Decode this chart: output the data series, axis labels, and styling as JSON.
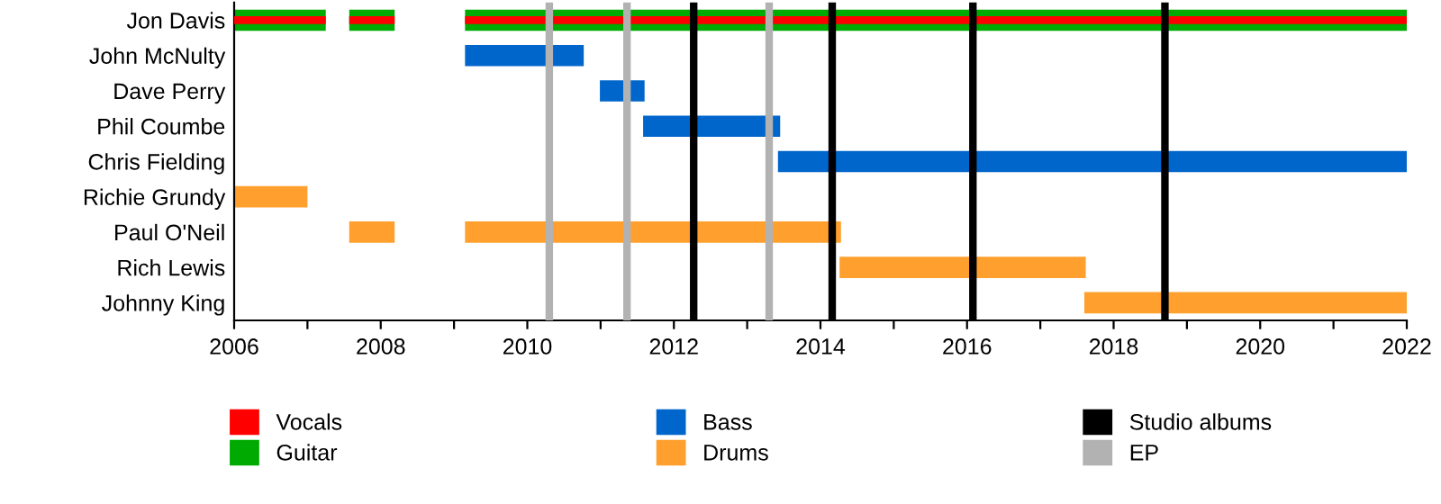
{
  "chart_data": {
    "type": "bar",
    "orientation": "horizontal",
    "categories": [
      "Jon Davis",
      "John McNulty",
      "Dave Perry",
      "Phil Coumbe",
      "Chris Fielding",
      "Richie Grundy",
      "Paul O'Neil",
      "Rich Lewis",
      "Johnny King"
    ],
    "series": [
      {
        "name": "Guitar",
        "color": "#00aa00",
        "base": [
          2006,
          null,
          null,
          null,
          null,
          null,
          null,
          null,
          null
        ],
        "values": [
          1.25,
          null,
          null,
          null,
          null,
          null,
          null,
          null,
          null
        ]
      },
      {
        "name": "Vocals",
        "color": "#ff0000",
        "base": [
          2006,
          null,
          null,
          null,
          null,
          null,
          null,
          null,
          null
        ],
        "values": [
          1.25,
          null,
          null,
          null,
          null,
          null,
          null,
          null,
          null
        ]
      },
      {
        "color": "#00aa00",
        "base": [
          2007.57,
          null,
          null,
          null,
          null,
          null,
          null,
          null,
          null
        ],
        "values": [
          0.62,
          null,
          null,
          null,
          null,
          null,
          null,
          null,
          null
        ]
      },
      {
        "color": "#ff0000",
        "base": [
          2007.57,
          null,
          null,
          null,
          null,
          null,
          null,
          null,
          null
        ],
        "values": [
          0.62,
          null,
          null,
          null,
          null,
          null,
          null,
          null,
          null
        ]
      },
      {
        "color": "#00aa00",
        "base": [
          2009.15,
          null,
          null,
          null,
          null,
          null,
          null,
          null,
          null
        ],
        "values": [
          12.85,
          null,
          null,
          null,
          null,
          null,
          null,
          null,
          null
        ]
      },
      {
        "color": "#ff0000",
        "base": [
          2009.15,
          null,
          null,
          null,
          null,
          null,
          null,
          null,
          null
        ],
        "values": [
          12.85,
          null,
          null,
          null,
          null,
          null,
          null,
          null,
          null
        ]
      },
      {
        "name": "Bass",
        "color": "#0066cc",
        "base": [
          null,
          2009.15,
          2010.99,
          2011.58,
          2013.42,
          null,
          null,
          null,
          null
        ],
        "values": [
          null,
          1.62,
          0.61,
          1.87,
          8.58,
          null,
          null,
          null,
          null
        ]
      },
      {
        "name": "Drums",
        "color": "#ffa02e",
        "base": [
          null,
          null,
          null,
          null,
          null,
          2006,
          2007.57,
          2014.26,
          2017.6
        ],
        "values": [
          null,
          null,
          null,
          null,
          null,
          1.0,
          0.62,
          3.36,
          4.4
        ]
      },
      {
        "color": "#ffa02e",
        "base": [
          null,
          null,
          null,
          null,
          null,
          null,
          2009.15,
          null,
          null
        ],
        "values": [
          null,
          null,
          null,
          null,
          null,
          null,
          5.13,
          null,
          null
        ]
      }
    ],
    "ref_lines": [
      {
        "axis": "x",
        "value": 2012.27,
        "label": "Studio albums",
        "color": "#000000"
      },
      {
        "axis": "x",
        "value": 2014.16,
        "color": "#000000"
      },
      {
        "axis": "x",
        "value": 2016.08,
        "color": "#000000"
      },
      {
        "axis": "x",
        "value": 2018.7,
        "color": "#000000"
      },
      {
        "axis": "x",
        "value": 2010.3,
        "label": "EP",
        "color": "#b2b2b2"
      },
      {
        "axis": "x",
        "value": 2011.36,
        "color": "#b2b2b2"
      },
      {
        "axis": "x",
        "value": 2013.3,
        "color": "#b2b2b2"
      }
    ],
    "xlim": [
      2006,
      2022
    ],
    "xticks": [
      2006,
      {
        "value": 2007,
        "label": null
      },
      2008,
      {
        "value": 2009,
        "label": null
      },
      2010,
      {
        "value": 2011,
        "label": null
      },
      2012,
      {
        "value": 2013,
        "label": null
      },
      2014,
      {
        "value": 2015,
        "label": null
      },
      2016,
      {
        "value": 2017,
        "label": null
      },
      2018,
      {
        "value": 2019,
        "label": null
      },
      2020,
      {
        "value": 2021,
        "label": null
      },
      2022
    ],
    "grid": false,
    "legend": "bottom"
  }
}
